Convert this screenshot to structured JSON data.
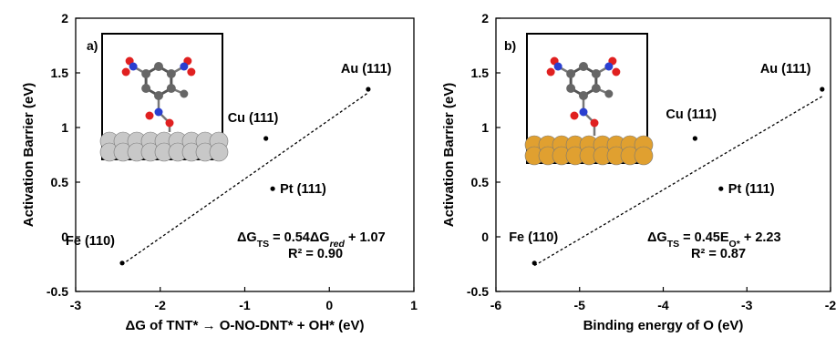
{
  "chart_data": [
    {
      "type": "scatter",
      "panel_label": "a)",
      "xlabel": "ΔG of TNT* → O-NO-DNT* + OH* (eV)",
      "ylabel": "Activation Barrier (eV)",
      "xlim": [
        -3,
        1
      ],
      "ylim": [
        -0.5,
        2
      ],
      "xticks": [
        -3,
        -2,
        -1,
        0,
        1
      ],
      "yticks": [
        -0.5,
        0,
        0.5,
        1,
        1.5,
        2
      ],
      "grid": false,
      "points": [
        {
          "label": "Au (111)",
          "x": 0.46,
          "y": 1.35
        },
        {
          "label": "Cu (111)",
          "x": -0.75,
          "y": 0.9
        },
        {
          "label": "Pt (111)",
          "x": -0.67,
          "y": 0.44
        },
        {
          "label": "Fe (110)",
          "x": -2.45,
          "y": -0.24
        }
      ],
      "fit": {
        "slope": 0.54,
        "intercept": 1.07,
        "x_range": [
          -2.45,
          0.46
        ],
        "style": "dotted"
      },
      "equation": {
        "lhs": "ΔG",
        "lhs_sub": "TS",
        "mid": " = 0.54ΔG",
        "mid_sub": "red",
        "rhs": " + 1.07"
      },
      "r2": "R² = 0.90",
      "inset": {
        "surface_color": "#c8c8c8",
        "description": "TNT molecule on Pt-like metal slab"
      }
    },
    {
      "type": "scatter",
      "panel_label": "b)",
      "xlabel": "Binding energy of O (eV)",
      "ylabel": "Activation Barrier (eV)",
      "xlim": [
        -6,
        -2
      ],
      "ylim": [
        -0.5,
        2
      ],
      "xticks": [
        -6,
        -5,
        -4,
        -3,
        -2
      ],
      "yticks": [
        -0.5,
        0,
        0.5,
        1,
        1.5,
        2
      ],
      "grid": false,
      "points": [
        {
          "label": "Au (111)",
          "x": -2.1,
          "y": 1.35
        },
        {
          "label": "Cu (111)",
          "x": -3.62,
          "y": 0.9
        },
        {
          "label": "Pt (111)",
          "x": -3.31,
          "y": 0.44
        },
        {
          "label": "Fe (110)",
          "x": -5.54,
          "y": -0.24
        }
      ],
      "fit": {
        "slope": 0.45,
        "intercept": 2.23,
        "x_range": [
          -5.54,
          -2.1
        ],
        "style": "dotted"
      },
      "equation": {
        "lhs": "ΔG",
        "lhs_sub": "TS",
        "mid": "  = 0.45E",
        "mid_sub": "O*",
        "rhs": " + 2.23"
      },
      "r2": "R² = 0.87",
      "inset": {
        "surface_color": "#e0a030",
        "description": "TNT molecule on Cu-like metal slab"
      }
    }
  ],
  "colors": {
    "axis": "#000000",
    "point": "#000000",
    "fit": "#000000"
  }
}
